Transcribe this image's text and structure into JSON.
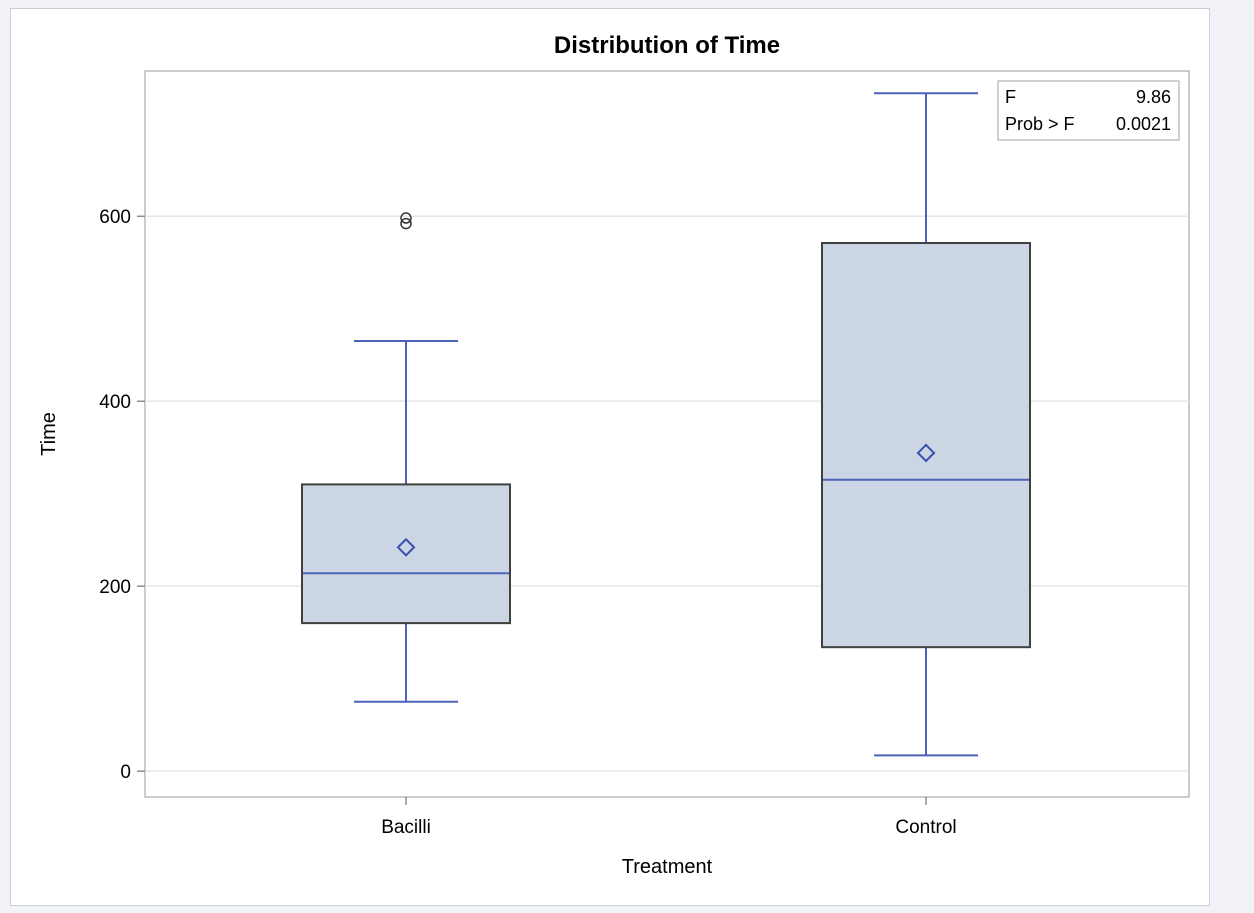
{
  "chart_data": {
    "type": "box",
    "title": "Distribution of Time",
    "xlabel": "Treatment",
    "ylabel": "Time",
    "ylim": [
      -28,
      757
    ],
    "yticks": [
      0,
      200,
      400,
      600
    ],
    "grid": true,
    "categories": [
      "Bacilli",
      "Control"
    ],
    "boxes": [
      {
        "category": "Bacilli",
        "whisker_low": 75,
        "q1": 160,
        "median": 214,
        "q3": 310,
        "whisker_high": 465,
        "mean": 242,
        "outliers": [
          592,
          598
        ]
      },
      {
        "category": "Control",
        "whisker_low": 17,
        "q1": 134,
        "median": 315,
        "q3": 571,
        "whisker_high": 733,
        "mean": 344,
        "outliers": []
      }
    ],
    "stats_table": {
      "rows": [
        {
          "label": "F",
          "value": "9.86"
        },
        {
          "label": "Prob > F",
          "value": "0.0021"
        }
      ]
    },
    "colors": {
      "box_fill": "#cbd5e3",
      "box_outline": "#404040",
      "whisker": "#4d63b8",
      "mean_marker": "#3a50b0",
      "outlier": "#333333",
      "grid": "#e6e6e6"
    }
  }
}
